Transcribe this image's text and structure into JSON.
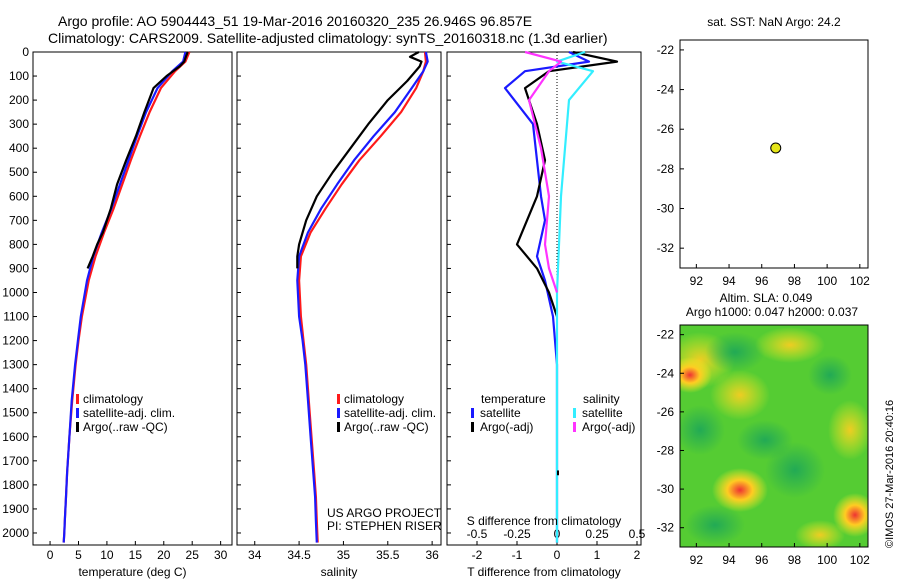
{
  "header": {
    "line1": "Argo profile: AO 5904443_51 19-Mar-2016 20160320_235 26.946S 96.857E",
    "line2": "Climatology: CARS2009. Satellite-adjusted climatology: synTS_20160318.nc (1.3d earlier)"
  },
  "colors": {
    "climatology": "#ff1a1a",
    "satellite": "#1a1aff",
    "argo": "#000000",
    "salinity_satellite": "#33eeff",
    "salinity_argo": "#ff33ff",
    "map_dot": "#e6e619"
  },
  "chart_data": [
    {
      "id": "temperature",
      "type": "line",
      "xlabel": "temperature (deg C)",
      "ylabel": "",
      "xlim": [
        -3,
        32
      ],
      "ylim": [
        2050,
        0
      ],
      "xticks": [
        0,
        5,
        10,
        15,
        20,
        25,
        30
      ],
      "yticks": [
        0,
        100,
        200,
        300,
        400,
        500,
        600,
        700,
        800,
        900,
        1000,
        1100,
        1200,
        1300,
        1400,
        1500,
        1600,
        1700,
        1800,
        1900,
        2000
      ],
      "legend": {
        "placement": "lower-center",
        "entries": [
          "climatology",
          "satellite-adj. clim.",
          "Argo(..raw -QC)"
        ]
      },
      "series": [
        {
          "name": "climatology",
          "color": "climatology",
          "x": [
            24.5,
            23.8,
            22.0,
            19.5,
            17.5,
            15.8,
            14.2,
            12.7,
            11.2,
            9.5,
            8.0,
            6.8,
            5.6,
            5.0,
            4.5,
            3.9,
            3.4,
            3.0,
            2.8,
            2.6,
            2.5,
            2.4
          ],
          "y": [
            0,
            40,
            80,
            150,
            250,
            350,
            450,
            550,
            650,
            750,
            850,
            950,
            1100,
            1200,
            1300,
            1450,
            1600,
            1750,
            1850,
            1950,
            2000,
            2040
          ]
        },
        {
          "name": "satellite-adj. clim.",
          "color": "satellite",
          "x": [
            23.8,
            23.4,
            21.5,
            18.9,
            16.9,
            15.3,
            13.8,
            12.3,
            10.8,
            9.1,
            7.6,
            6.5,
            5.4,
            4.9,
            4.4,
            3.8,
            3.4,
            3.0,
            2.8,
            2.6,
            2.5,
            2.4
          ],
          "y": [
            0,
            40,
            80,
            150,
            250,
            350,
            450,
            550,
            650,
            750,
            850,
            950,
            1100,
            1200,
            1300,
            1450,
            1600,
            1750,
            1850,
            1950,
            2000,
            2040
          ]
        },
        {
          "name": "Argo(..raw -QC)",
          "color": "argo",
          "x": [
            24.2,
            23.9,
            23.6,
            22.8,
            20.5,
            18.2,
            16.6,
            15.1,
            13.4,
            11.8,
            10.7,
            9.3,
            8.3,
            7.5,
            6.6
          ],
          "y": [
            0,
            20,
            40,
            60,
            100,
            150,
            250,
            350,
            450,
            550,
            650,
            750,
            800,
            850,
            900
          ]
        }
      ]
    },
    {
      "id": "salinity",
      "type": "line",
      "xlabel": "salinity",
      "ylabel": "",
      "xlim": [
        33.8,
        36.1
      ],
      "ylim": [
        2050,
        0
      ],
      "xticks": [
        34,
        34.5,
        35,
        35.5,
        36
      ],
      "legend": {
        "placement": "lower-center",
        "entries": [
          "climatology",
          "satellite-adj. clim.",
          "Argo(..raw -QC)"
        ]
      },
      "annotations": [
        "US ARGO PROJECT",
        "PI: STEPHEN RISER"
      ],
      "series": [
        {
          "name": "climatology",
          "color": "climatology",
          "x": [
            35.92,
            35.93,
            35.9,
            35.82,
            35.65,
            35.42,
            35.18,
            34.98,
            34.8,
            34.63,
            34.52,
            34.5,
            34.52,
            34.55,
            34.58,
            34.61,
            34.64,
            34.67,
            34.69,
            34.7,
            34.71
          ],
          "y": [
            0,
            40,
            80,
            150,
            250,
            350,
            450,
            550,
            650,
            750,
            850,
            950,
            1100,
            1200,
            1300,
            1450,
            1600,
            1750,
            1850,
            1950,
            2040
          ]
        },
        {
          "name": "satellite-adj. clim.",
          "color": "satellite",
          "x": [
            35.93,
            35.95,
            35.9,
            35.77,
            35.58,
            35.34,
            35.12,
            34.93,
            34.75,
            34.6,
            34.5,
            34.48,
            34.5,
            34.54,
            34.57,
            34.6,
            34.63,
            34.66,
            34.68,
            34.69,
            34.7
          ],
          "y": [
            0,
            40,
            80,
            150,
            250,
            350,
            450,
            550,
            650,
            750,
            850,
            950,
            1100,
            1200,
            1300,
            1450,
            1600,
            1750,
            1850,
            1950,
            2040
          ]
        },
        {
          "name": "Argo(..raw -QC)",
          "color": "argo",
          "x": [
            35.85,
            35.75,
            35.88,
            35.86,
            35.72,
            35.5,
            35.28,
            35.08,
            34.88,
            34.7,
            34.58,
            34.5,
            34.48,
            34.48
          ],
          "y": [
            0,
            20,
            40,
            60,
            120,
            200,
            300,
            400,
            500,
            600,
            700,
            800,
            850,
            900
          ]
        }
      ]
    },
    {
      "id": "difference",
      "type": "line",
      "xlabel": "T difference from climatology",
      "xlabel_top": "S difference from climatology",
      "ylabel": "",
      "xlim": [
        -2.75,
        2.1
      ],
      "ylim": [
        2050,
        0
      ],
      "xticks": [
        -2,
        -1,
        0,
        1,
        2
      ],
      "xticks_top": [
        "-0.5",
        "-0.25",
        "0",
        "0.25",
        "0.5"
      ],
      "legend": {
        "placement": "lower-center",
        "title_left": "temperature",
        "title_right": "salinity",
        "entries": [
          "satellite",
          "Argo(-adj)",
          "satellite",
          "Argo(-adj)"
        ]
      },
      "series": [
        {
          "name": "satellite",
          "group": "temperature",
          "color": "satellite",
          "x": [
            0.3,
            0.8,
            -0.8,
            -1.3,
            -0.6,
            -0.5,
            -0.4,
            -0.3,
            -0.5,
            -0.3,
            -0.1,
            0.0,
            0.0,
            0.0,
            0.0,
            0.0
          ],
          "y": [
            0,
            40,
            80,
            150,
            300,
            450,
            600,
            700,
            850,
            950,
            1100,
            1300,
            1500,
            1700,
            1900,
            2040
          ]
        },
        {
          "name": "Argo(-adj)",
          "group": "temperature",
          "color": "argo",
          "x": [
            0.4,
            1.5,
            -0.2,
            -0.8,
            -0.5,
            -0.3,
            -0.5,
            -1.0,
            -0.5,
            -0.2,
            0.0
          ],
          "y": [
            0,
            40,
            80,
            150,
            300,
            450,
            600,
            800,
            900,
            1000,
            1100
          ]
        },
        {
          "name": "satellite",
          "group": "salinity",
          "color": "salinity_satellite",
          "x": [
            0.7,
            0.0,
            0.9,
            0.3,
            0.2,
            0.1,
            0.05,
            0.0,
            0.0,
            0.0,
            0.0,
            0.0,
            0.0
          ],
          "y": [
            0,
            40,
            80,
            200,
            400,
            600,
            800,
            1000,
            1200,
            1400,
            1600,
            1800,
            2040
          ]
        },
        {
          "name": "Argo(-adj)",
          "group": "salinity",
          "color": "salinity_argo",
          "x": [
            -0.8,
            0.1,
            -0.2,
            -0.7,
            -0.4,
            -0.2,
            -0.3,
            -0.2,
            0.0
          ],
          "y": [
            0,
            40,
            80,
            200,
            400,
            600,
            800,
            900,
            1000
          ]
        }
      ]
    },
    {
      "id": "sst_map",
      "type": "scatter",
      "title": "sat. SST: NaN Argo: 24.2",
      "xlabel": "",
      "ylabel": "",
      "xlim": [
        91,
        102.5
      ],
      "ylim": [
        -33,
        -21.5
      ],
      "xticks": [
        92,
        94,
        96,
        98,
        100,
        102
      ],
      "yticks": [
        -22,
        -24,
        -26,
        -28,
        -30,
        -32
      ],
      "points": [
        {
          "x": 96.857,
          "y": -26.946
        }
      ]
    },
    {
      "id": "sla_map",
      "type": "heatmap",
      "title_line1": "Altim. SLA: 0.049",
      "title_line2": "Argo h1000: 0.047 h2000: 0.037",
      "xlabel": "",
      "ylabel": "",
      "xlim": [
        91,
        102.5
      ],
      "ylim": [
        -33,
        -21.5
      ],
      "xticks": [
        92,
        94,
        96,
        98,
        100,
        102
      ],
      "yticks": [
        -22,
        -24,
        -26,
        -28,
        -30,
        -32
      ],
      "side_label": "©IMOS 27-Mar-2016 20:40:16"
    }
  ]
}
